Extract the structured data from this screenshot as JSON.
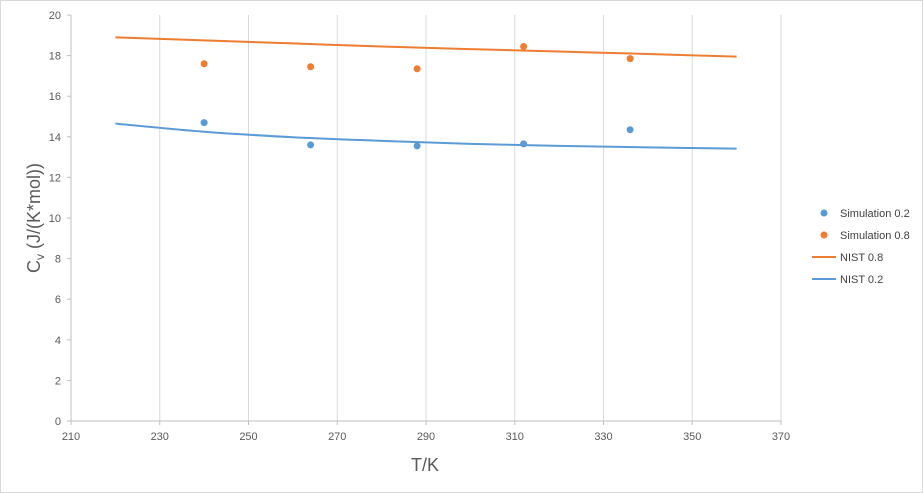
{
  "chart_data": {
    "type": "scatter",
    "title": "",
    "xlabel": "T/K",
    "ylabel_main": "C",
    "ylabel_sub": "v",
    "ylabel_rest": " (J/(K*mol))",
    "xlim": [
      210,
      370
    ],
    "ylim": [
      0,
      20
    ],
    "xticks": [
      210,
      230,
      250,
      270,
      290,
      310,
      330,
      350,
      370
    ],
    "yticks": [
      0,
      2,
      4,
      6,
      8,
      10,
      12,
      14,
      16,
      18,
      20
    ],
    "grid": "vertical",
    "legend_position": "right",
    "series": [
      {
        "name": "Simulation 0.2",
        "kind": "points",
        "color": "#5b9bd5",
        "x": [
          240,
          264,
          288,
          312,
          336
        ],
        "y": [
          14.7,
          13.6,
          13.55,
          13.65,
          14.35
        ]
      },
      {
        "name": "Simulation 0.8",
        "kind": "points",
        "color": "#ed7d31",
        "x": [
          240,
          264,
          288,
          312,
          336
        ],
        "y": [
          17.6,
          17.45,
          17.35,
          18.45,
          17.85
        ]
      },
      {
        "name": "NIST 0.8",
        "kind": "line",
        "color": "#ed7d31",
        "x": [
          220,
          240,
          260,
          280,
          300,
          320,
          340,
          360
        ],
        "y": [
          18.9,
          18.75,
          18.6,
          18.45,
          18.32,
          18.2,
          18.08,
          17.95
        ]
      },
      {
        "name": "NIST 0.2",
        "kind": "line",
        "color": "#5b9bd5",
        "x": [
          220,
          240,
          260,
          280,
          300,
          320,
          340,
          360
        ],
        "y": [
          14.65,
          14.25,
          13.98,
          13.8,
          13.65,
          13.55,
          13.48,
          13.42
        ]
      }
    ]
  }
}
